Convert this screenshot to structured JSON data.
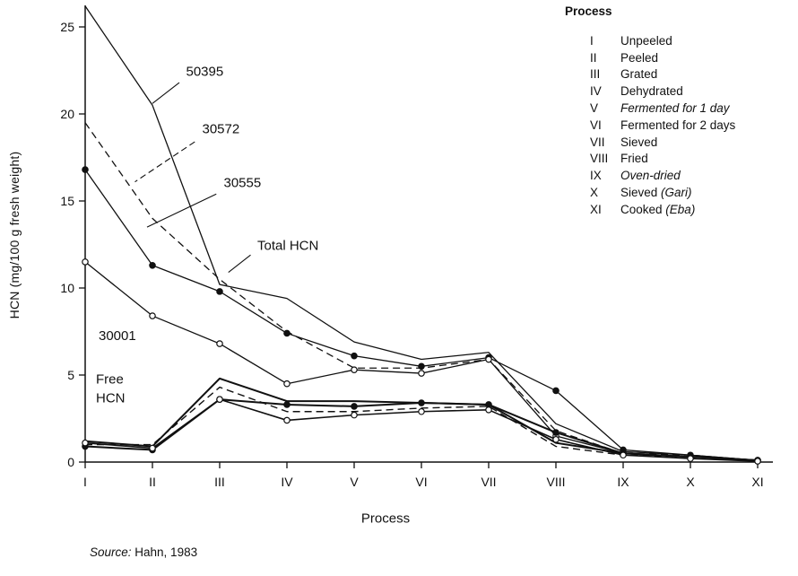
{
  "chart_data": {
    "type": "line",
    "title": "",
    "xlabel": "Process",
    "ylabel": "HCN (mg/100 g fresh weight)",
    "categories": [
      "I",
      "II",
      "III",
      "IV",
      "V",
      "VI",
      "VII",
      "VIII",
      "IX",
      "X",
      "XI"
    ],
    "ylim": [
      0,
      26.5
    ],
    "yticks": [
      0,
      5,
      10,
      15,
      20,
      25
    ],
    "grid": false,
    "legend_position": "top-right",
    "series": [
      {
        "name": "50395 Total HCN",
        "dash": false,
        "marker": "none",
        "width": 1.3,
        "values": [
          26.2,
          20.5,
          10.2,
          9.4,
          6.9,
          5.9,
          6.3,
          2.2,
          0.6,
          0.4,
          0.1
        ]
      },
      {
        "name": "30572 Total HCN",
        "dash": true,
        "marker": "none",
        "width": 1.3,
        "values": [
          19.5,
          14.0,
          10.5,
          7.5,
          5.4,
          5.4,
          5.9,
          1.8,
          0.5,
          0.4,
          0.1
        ]
      },
      {
        "name": "30555 Total HCN",
        "dash": false,
        "marker": "filled",
        "width": 1.3,
        "values": [
          16.8,
          11.3,
          9.8,
          7.4,
          6.1,
          5.5,
          6.0,
          4.1,
          0.7,
          0.4,
          0.1
        ]
      },
      {
        "name": "30001 Total HCN",
        "dash": false,
        "marker": "open",
        "width": 1.3,
        "values": [
          11.5,
          8.4,
          6.8,
          4.5,
          5.3,
          5.1,
          5.9,
          1.5,
          0.5,
          0.3,
          0.1
        ]
      },
      {
        "name": "50395 Free HCN",
        "dash": false,
        "marker": "none",
        "width": 2,
        "values": [
          1.2,
          0.9,
          4.8,
          3.5,
          3.5,
          3.4,
          3.3,
          1.1,
          0.5,
          0.3,
          0.1
        ]
      },
      {
        "name": "30572 Free HCN",
        "dash": true,
        "marker": "none",
        "width": 1.4,
        "values": [
          1.0,
          1.0,
          4.3,
          2.9,
          2.9,
          3.1,
          3.2,
          0.9,
          0.4,
          0.3,
          0.05
        ]
      },
      {
        "name": "30555 Free HCN",
        "dash": false,
        "marker": "filled",
        "width": 2,
        "values": [
          0.9,
          0.7,
          3.6,
          3.3,
          3.2,
          3.4,
          3.3,
          1.7,
          0.5,
          0.3,
          0.1
        ]
      },
      {
        "name": "30001 Free HCN",
        "dash": false,
        "marker": "open",
        "width": 1.6,
        "values": [
          1.1,
          0.8,
          3.6,
          2.4,
          2.7,
          2.9,
          3.0,
          1.3,
          0.4,
          0.2,
          0.05
        ]
      }
    ],
    "annotations": [
      {
        "lines": [
          "50395"
        ],
        "xi": 1.5,
        "v": 22.2,
        "leader": {
          "x1": 1.4,
          "v1": 21.8,
          "x2": 1.0,
          "v2": 20.6,
          "dash": false
        }
      },
      {
        "lines": [
          "30572"
        ],
        "xi": 1.74,
        "v": 18.9,
        "leader": {
          "x1": 1.63,
          "v1": 18.4,
          "x2": 0.74,
          "v2": 16.1,
          "dash": true
        }
      },
      {
        "lines": [
          "30555"
        ],
        "xi": 2.06,
        "v": 15.8,
        "leader": {
          "x1": 1.95,
          "v1": 15.4,
          "x2": 0.92,
          "v2": 13.5,
          "dash": false
        }
      },
      {
        "lines": [
          "Total HCN"
        ],
        "xi": 2.56,
        "v": 12.2,
        "leader": {
          "x1": 2.46,
          "v1": 11.9,
          "x2": 2.13,
          "v2": 10.9,
          "dash": false
        }
      },
      {
        "lines": [
          "30001"
        ],
        "xi": 0.2,
        "v": 7.0
      },
      {
        "lines": [
          "Free",
          "HCN"
        ],
        "xi": 0.16,
        "v": 4.5
      }
    ]
  },
  "legend": {
    "header": "Process",
    "items": [
      {
        "numeral": "I",
        "label": "Unpeeled",
        "note": ""
      },
      {
        "numeral": "II",
        "label": "Peeled",
        "note": ""
      },
      {
        "numeral": "III",
        "label": "Grated",
        "note": ""
      },
      {
        "numeral": "IV",
        "label": "Dehydrated",
        "note": ""
      },
      {
        "numeral": "V",
        "label": "Fermented for 1 day",
        "note": ""
      },
      {
        "numeral": "VI",
        "label": "Fermented for 2 days",
        "note": ""
      },
      {
        "numeral": "VII",
        "label": "Sieved",
        "note": ""
      },
      {
        "numeral": "VIII",
        "label": "Fried",
        "note": ""
      },
      {
        "numeral": "IX",
        "label": "Oven-dried",
        "note": ""
      },
      {
        "numeral": "X",
        "label": "Sieved ",
        "note": "(Gari)"
      },
      {
        "numeral": "XI",
        "label": "Cooked ",
        "note": "(Eba)"
      }
    ]
  },
  "source": {
    "prefix": "Source:",
    "text": " Hahn, 1983"
  }
}
